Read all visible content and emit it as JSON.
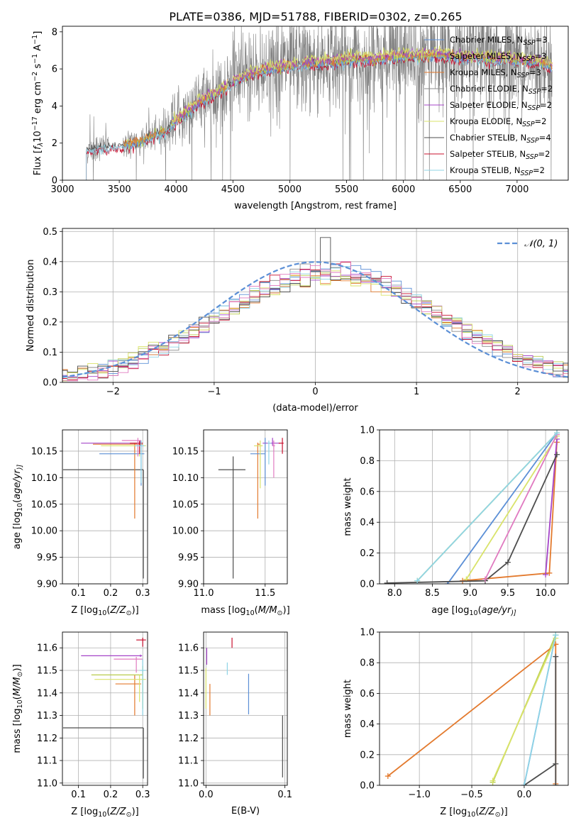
{
  "figure_title": "PLATE=0386, MJD=51788, FIBERID=0302, z=0.265",
  "colors": {
    "chabrier_miles": "#5b8fd6",
    "salpeter_miles": "#b8cc4c",
    "kroupa_miles": "#e37a2e",
    "chabrier_elodie": "#8c8c8c",
    "salpeter_elodie": "#a545c8",
    "kroupa_elodie": "#d9e36a",
    "chabrier_stelib": "#4d4d4d",
    "salpeter_stelib": "#c8102e",
    "kroupa_stelib": "#8fd4e6",
    "pink": "#e07ac0",
    "normal_curve": "#5b8fd6",
    "grid": "#b0b0b0"
  },
  "chart_data": [
    {
      "id": "spectrum",
      "type": "line",
      "xlabel": "wavelength [Angstrom, rest frame]",
      "ylabel_parts": [
        "Flux [",
        "f",
        "λ",
        "10",
        "−17",
        " erg cm",
        "−2",
        " s",
        "−1",
        " A",
        "−1",
        "]"
      ],
      "xlim": [
        3000,
        7450
      ],
      "ylim": [
        0,
        8.3
      ],
      "xticks": [
        3000,
        3500,
        4000,
        4500,
        5000,
        5500,
        6000,
        6500,
        7000
      ],
      "yticks": [
        0,
        2,
        4,
        6,
        8
      ],
      "grid": false,
      "legend_position": "top-right",
      "legend": [
        {
          "name": "Chabrier MILES, N",
          "sub": "SSP",
          "tail": "=3",
          "color_key": "chabrier_miles"
        },
        {
          "name": "Salpeter MILES, N",
          "sub": "SSP",
          "tail": "=3",
          "color_key": "salpeter_miles"
        },
        {
          "name": "Kroupa MILES, N",
          "sub": "SSP",
          "tail": "=3",
          "color_key": "kroupa_miles"
        },
        {
          "name": "Chabrier ELODIE, N",
          "sub": "SSP",
          "tail": "=2",
          "color_key": "chabrier_elodie"
        },
        {
          "name": "Salpeter ELODIE, N",
          "sub": "SSP",
          "tail": "=2",
          "color_key": "salpeter_elodie"
        },
        {
          "name": "Kroupa ELODIE, N",
          "sub": "SSP",
          "tail": "=2",
          "color_key": "kroupa_elodie"
        },
        {
          "name": "Chabrier STELIB, N",
          "sub": "SSP",
          "tail": "=4",
          "color_key": "chabrier_stelib"
        },
        {
          "name": "Salpeter STELIB, N",
          "sub": "SSP",
          "tail": "=2",
          "color_key": "salpeter_stelib"
        },
        {
          "name": "Kroupa STELIB, N",
          "sub": "SSP",
          "tail": "=2",
          "color_key": "kroupa_stelib"
        }
      ],
      "model_continuum": {
        "x": [
          3210,
          3300,
          3400,
          3500,
          3600,
          3700,
          3800,
          3900,
          4000,
          4100,
          4200,
          4300,
          4400,
          4500,
          4600,
          4700,
          4800,
          4900,
          5000,
          5100,
          5200,
          5300,
          5400,
          5500,
          5600,
          5700,
          5800,
          5900,
          6000,
          6100,
          6200,
          6300,
          6400,
          6500,
          6600,
          6700,
          6800,
          6900,
          7000,
          7100,
          7200,
          7300
        ],
        "y": [
          1.6,
          1.75,
          1.8,
          1.85,
          2.0,
          2.15,
          2.4,
          2.6,
          3.2,
          3.7,
          4.2,
          4.5,
          4.9,
          5.3,
          5.6,
          5.8,
          6.0,
          6.1,
          6.2,
          6.2,
          6.3,
          6.35,
          6.4,
          6.5,
          6.55,
          6.5,
          6.6,
          6.65,
          6.7,
          6.7,
          6.75,
          6.8,
          6.7,
          6.65,
          6.7,
          6.6,
          6.55,
          6.6,
          6.5,
          6.45,
          6.4,
          6.2
        ]
      }
    },
    {
      "id": "residuals",
      "type": "line",
      "xlabel": "(data-model)/error",
      "ylabel": "Normed distribution",
      "xlim": [
        -2.5,
        2.5
      ],
      "ylim": [
        0,
        0.51
      ],
      "xticks": [
        -2,
        -1,
        0,
        1,
        2
      ],
      "yticks": [
        0.0,
        0.1,
        0.2,
        0.3,
        0.4,
        0.5
      ],
      "grid": true,
      "legend_position": "top-right",
      "legend": [
        {
          "name": "𝒩(0, 1)",
          "color_key": "normal_curve",
          "dashed": true
        }
      ],
      "hist_bin_width": 0.1,
      "hist_range": [
        -2.5,
        2.5
      ]
    },
    {
      "id": "age_vs_Z",
      "type": "errorbar",
      "xlabel_parts": [
        "Z [log",
        "10",
        "(",
        "Z/Z",
        "⊙",
        ")]"
      ],
      "ylabel_parts": [
        "age  [log",
        "10",
        "(",
        "age/yr",
        ")]"
      ],
      "xlim": [
        0.05,
        0.315
      ],
      "ylim": [
        9.9,
        10.19
      ],
      "xticks": [
        0.1,
        0.2,
        0.3
      ],
      "yticks": [
        9.9,
        9.95,
        10.0,
        10.05,
        10.1,
        10.15
      ],
      "grid": true,
      "points": [
        {
          "x": 0.302,
          "y": 10.115,
          "xerr": [
            0.25,
            0.0
          ],
          "yerr": [
            0.205,
            0.0
          ],
          "color_key": "chabrier_stelib"
        },
        {
          "x": 0.293,
          "y": 10.165,
          "xerr": [
            0.185,
            0.005
          ],
          "yerr": [
            0.005,
            0.005
          ],
          "color_key": "salpeter_elodie"
        },
        {
          "x": 0.275,
          "y": 10.163,
          "xerr": [
            0.13,
            0.025
          ],
          "yerr": [
            0.14,
            0.003
          ],
          "color_key": "kroupa_miles"
        },
        {
          "x": 0.295,
          "y": 10.145,
          "xerr": [
            0.13,
            0.01
          ],
          "yerr": [
            0.06,
            0.025
          ],
          "color_key": "chabrier_miles"
        },
        {
          "x": 0.29,
          "y": 10.16,
          "xerr": [
            0.12,
            0.02
          ],
          "yerr": [
            0.02,
            0.01
          ],
          "color_key": "kroupa_elodie"
        },
        {
          "x": 0.29,
          "y": 10.165,
          "xerr": [
            0.03,
            0.01
          ],
          "yerr": [
            0.02,
            0.005
          ],
          "color_key": "salpeter_stelib"
        },
        {
          "x": 0.285,
          "y": 10.17,
          "xerr": [
            0.05,
            0.01
          ],
          "yerr": [
            0.03,
            0.005
          ],
          "color_key": "pink"
        },
        {
          "x": 0.295,
          "y": 10.16,
          "xerr": [
            0.02,
            0.01
          ],
          "yerr": [
            0.07,
            0.01
          ],
          "color_key": "kroupa_stelib"
        }
      ]
    },
    {
      "id": "age_vs_mass",
      "type": "errorbar",
      "xlabel_parts": [
        "mass [log",
        "10",
        "(",
        "M/M",
        "⊙",
        ")]"
      ],
      "ylabel": "",
      "xlim": [
        11.0,
        11.68
      ],
      "ylim": [
        9.9,
        10.19
      ],
      "xticks": [
        11.0,
        11.5
      ],
      "yticks": [
        9.9,
        9.95,
        10.0,
        10.05,
        10.1,
        10.15
      ],
      "grid": true,
      "points": [
        {
          "x": 11.24,
          "y": 10.115,
          "xerr": [
            0.12,
            0.1
          ],
          "yerr": [
            0.205,
            0.025
          ],
          "color_key": "chabrier_stelib"
        },
        {
          "x": 11.56,
          "y": 10.165,
          "xerr": [
            0.08,
            0.06
          ],
          "yerr": [
            0.005,
            0.01
          ],
          "color_key": "salpeter_elodie"
        },
        {
          "x": 11.44,
          "y": 10.163,
          "xerr": [
            0.0,
            0.02
          ],
          "yerr": [
            0.14,
            0.003
          ],
          "color_key": "kroupa_miles"
        },
        {
          "x": 11.5,
          "y": 10.145,
          "xerr": [
            0.12,
            0.0
          ],
          "yerr": [
            0.06,
            0.03
          ],
          "color_key": "chabrier_miles"
        },
        {
          "x": 11.46,
          "y": 10.16,
          "xerr": [
            0.05,
            0.02
          ],
          "yerr": [
            0.08,
            0.01
          ],
          "color_key": "kroupa_elodie"
        },
        {
          "x": 11.64,
          "y": 10.165,
          "xerr": [
            0.03,
            0.01
          ],
          "yerr": [
            0.02,
            0.01
          ],
          "color_key": "salpeter_stelib"
        },
        {
          "x": 11.57,
          "y": 10.16,
          "xerr": [
            0.01,
            0.01
          ],
          "yerr": [
            0.06,
            0.01
          ],
          "color_key": "pink"
        },
        {
          "x": 11.53,
          "y": 10.165,
          "xerr": [
            0.01,
            0.02
          ],
          "yerr": [
            0.04,
            0.005
          ],
          "color_key": "kroupa_stelib"
        }
      ]
    },
    {
      "id": "mass_weight_vs_age",
      "type": "line",
      "xlabel_parts": [
        "age  [log",
        "10",
        "(",
        "age/yr",
        ")]"
      ],
      "ylabel": "mass weight",
      "xlim": [
        7.8,
        10.3
      ],
      "ylim": [
        0,
        1.0
      ],
      "xticks": [
        8.0,
        8.5,
        9.0,
        9.5,
        10.0
      ],
      "yticks": [
        0.0,
        0.2,
        0.4,
        0.6,
        0.8,
        1.0
      ],
      "grid": true,
      "series": [
        {
          "color_key": "chabrier_miles",
          "x": [
            8.7,
            10.15
          ],
          "y": [
            0.0,
            0.98
          ]
        },
        {
          "color_key": "salpeter_miles",
          "x": [
            8.3,
            10.15
          ],
          "y": [
            0.02,
            0.98
          ]
        },
        {
          "color_key": "kroupa_miles",
          "x": [
            8.9,
            10.05,
            10.15
          ],
          "y": [
            0.02,
            0.07,
            0.92
          ]
        },
        {
          "color_key": "salpeter_elodie",
          "x": [
            10.0,
            10.15
          ],
          "y": [
            0.06,
            0.94
          ]
        },
        {
          "color_key": "kroupa_elodie",
          "x": [
            8.95,
            10.15
          ],
          "y": [
            0.03,
            0.96
          ]
        },
        {
          "color_key": "chabrier_stelib",
          "x": [
            7.9,
            9.2,
            9.5,
            10.15
          ],
          "y": [
            0.005,
            0.02,
            0.14,
            0.84
          ]
        },
        {
          "color_key": "pink",
          "x": [
            9.2,
            10.15
          ],
          "y": [
            0.03,
            0.97
          ]
        },
        {
          "color_key": "kroupa_stelib",
          "x": [
            8.3,
            10.15
          ],
          "y": [
            0.02,
            0.98
          ]
        }
      ]
    },
    {
      "id": "mass_vs_Z",
      "type": "errorbar",
      "xlabel_parts": [
        "Z [log",
        "10",
        "(",
        "Z/Z",
        "⊙",
        ")]"
      ],
      "ylabel_parts": [
        "mass [log",
        "10",
        "(",
        "M/M",
        "⊙",
        ")]"
      ],
      "xlim": [
        0.05,
        0.315
      ],
      "ylim": [
        10.99,
        11.67
      ],
      "xticks": [
        0.1,
        0.2,
        0.3
      ],
      "yticks": [
        11.0,
        11.1,
        11.2,
        11.3,
        11.4,
        11.5,
        11.6
      ],
      "grid": true,
      "points": [
        {
          "x": 0.302,
          "y": 11.245,
          "xerr": [
            0.25,
            0.0
          ],
          "yerr": [
            0.225,
            0.0
          ],
          "color_key": "chabrier_stelib"
        },
        {
          "x": 0.293,
          "y": 11.565,
          "xerr": [
            0.185,
            0.005
          ],
          "yerr": [
            0.005,
            0.005
          ],
          "color_key": "salpeter_elodie"
        },
        {
          "x": 0.275,
          "y": 11.44,
          "xerr": [
            0.06,
            0.02
          ],
          "yerr": [
            0.14,
            0.04
          ],
          "color_key": "kroupa_miles"
        },
        {
          "x": 0.3,
          "y": 11.48,
          "xerr": [
            0.16,
            0.0
          ],
          "yerr": [
            0.15,
            0.04
          ],
          "color_key": "salpeter_miles"
        },
        {
          "x": 0.29,
          "y": 11.46,
          "xerr": [
            0.14,
            0.02
          ],
          "yerr": [
            0.1,
            0.02
          ],
          "color_key": "kroupa_elodie"
        },
        {
          "x": 0.3,
          "y": 11.635,
          "xerr": [
            0.02,
            0.01
          ],
          "yerr": [
            0.03,
            0.01
          ],
          "color_key": "salpeter_stelib"
        },
        {
          "x": 0.28,
          "y": 11.55,
          "xerr": [
            0.07,
            0.02
          ],
          "yerr": [
            0.06,
            0.01
          ],
          "color_key": "pink"
        },
        {
          "x": 0.3,
          "y": 11.5,
          "xerr": [
            0.01,
            0.01
          ],
          "yerr": [
            0.2,
            0.05
          ],
          "color_key": "kroupa_stelib"
        }
      ]
    },
    {
      "id": "mass_vs_ebv",
      "type": "errorbar",
      "xlabel": "E(B-V)",
      "ylabel": "",
      "xlim": [
        -0.003,
        0.103
      ],
      "ylim": [
        10.99,
        11.67
      ],
      "xticks": [
        0.0,
        0.1
      ],
      "yticks": [
        11.0,
        11.1,
        11.2,
        11.3,
        11.4,
        11.5,
        11.6
      ],
      "grid": true,
      "points": [
        {
          "x": 0.097,
          "y": 11.165,
          "xerr": [
            0,
            0
          ],
          "yerr": [
            0.14,
            0.135
          ],
          "color_key": "chabrier_stelib"
        },
        {
          "x": 0.001,
          "y": 11.565,
          "xerr": [
            0,
            0
          ],
          "yerr": [
            0.04,
            0.035
          ],
          "color_key": "salpeter_elodie"
        },
        {
          "x": 0.005,
          "y": 11.37,
          "xerr": [
            0,
            0
          ],
          "yerr": [
            0.07,
            0.07
          ],
          "color_key": "kroupa_miles"
        },
        {
          "x": 0.0,
          "y": 11.42,
          "xerr": [
            0,
            0
          ],
          "yerr": [
            0.09,
            0.09
          ],
          "color_key": "kroupa_elodie"
        },
        {
          "x": 0.033,
          "y": 11.625,
          "xerr": [
            0,
            0
          ],
          "yerr": [
            0.025,
            0.02
          ],
          "color_key": "salpeter_stelib"
        },
        {
          "x": 0.027,
          "y": 11.51,
          "xerr": [
            0,
            0
          ],
          "yerr": [
            0.03,
            0.025
          ],
          "color_key": "kroupa_stelib"
        },
        {
          "x": 0.054,
          "y": 11.395,
          "xerr": [
            0,
            0
          ],
          "yerr": [
            0.09,
            0.09
          ],
          "color_key": "chabrier_miles"
        }
      ]
    },
    {
      "id": "mass_weight_vs_Z",
      "type": "line",
      "xlabel_parts": [
        "Z [log",
        "10",
        "(",
        "Z/Z",
        "⊙",
        ")]"
      ],
      "ylabel": "mass weight",
      "xlim": [
        -1.38,
        0.42
      ],
      "ylim": [
        0,
        1.0
      ],
      "xticks": [
        -1.0,
        -0.5,
        0.0
      ],
      "yticks": [
        0.0,
        0.2,
        0.4,
        0.6,
        0.8,
        1.0
      ],
      "grid": true,
      "series": [
        {
          "color_key": "chabrier_miles",
          "x": [
            0.0,
            0.3
          ],
          "y": [
            0.0,
            0.98
          ]
        },
        {
          "color_key": "salpeter_miles",
          "x": [
            -0.3,
            0.3
          ],
          "y": [
            0.02,
            0.98
          ]
        },
        {
          "color_key": "kroupa_miles",
          "x": [
            -1.3,
            0.3,
            0.3,
            0.3
          ],
          "y": [
            0.06,
            0.92,
            0.01,
            0.92
          ]
        },
        {
          "color_key": "kroupa_elodie",
          "x": [
            -0.3,
            0.3
          ],
          "y": [
            0.03,
            0.96
          ]
        },
        {
          "color_key": "chabrier_stelib",
          "x": [
            0.0,
            0.3,
            0.3,
            0.3
          ],
          "y": [
            0.0,
            0.14,
            0.84,
            0.0
          ]
        },
        {
          "color_key": "kroupa_stelib",
          "x": [
            0.0,
            0.3
          ],
          "y": [
            0.0,
            0.98
          ]
        }
      ]
    }
  ]
}
